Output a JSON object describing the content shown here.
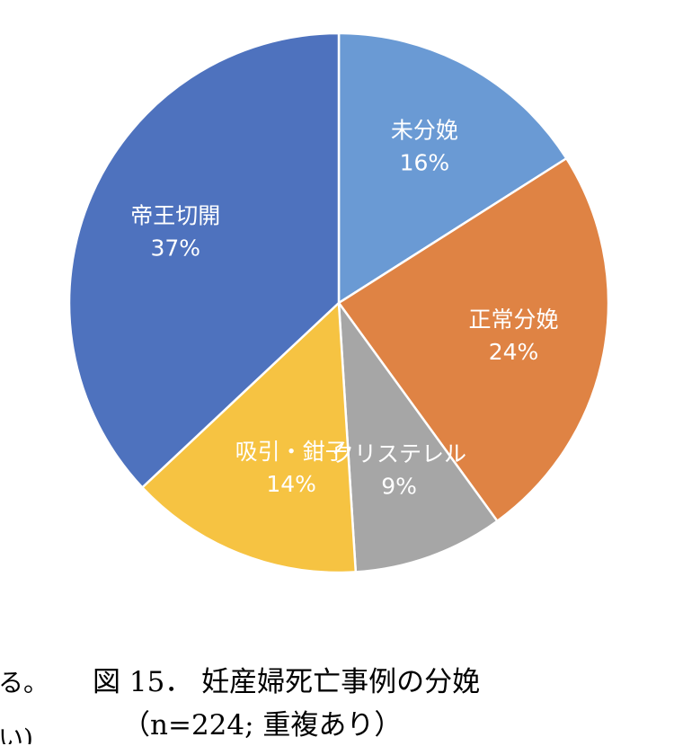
{
  "chart_data": {
    "type": "pie",
    "slices": [
      {
        "label": "未分娩",
        "percent_label": "16%",
        "value": 16,
        "color": "#6a9ad4"
      },
      {
        "label": "正常分娩",
        "percent_label": "24%",
        "value": 24,
        "color": "#df8344"
      },
      {
        "label": "クリステレル",
        "percent_label": "9%",
        "value": 9,
        "color": "#a6a6a6"
      },
      {
        "label": "吸引・鉗子",
        "percent_label": "14%",
        "value": 14,
        "color": "#f6c342"
      },
      {
        "label": "帝王切開",
        "percent_label": "37%",
        "value": 37,
        "color": "#4e72be"
      }
    ]
  },
  "caption": {
    "line1": "図 15． 妊産婦死亡事例の分娩",
    "line2": "（n=224; 重複あり）"
  },
  "side_text": {
    "line1": "る。",
    "line2": "い)"
  }
}
